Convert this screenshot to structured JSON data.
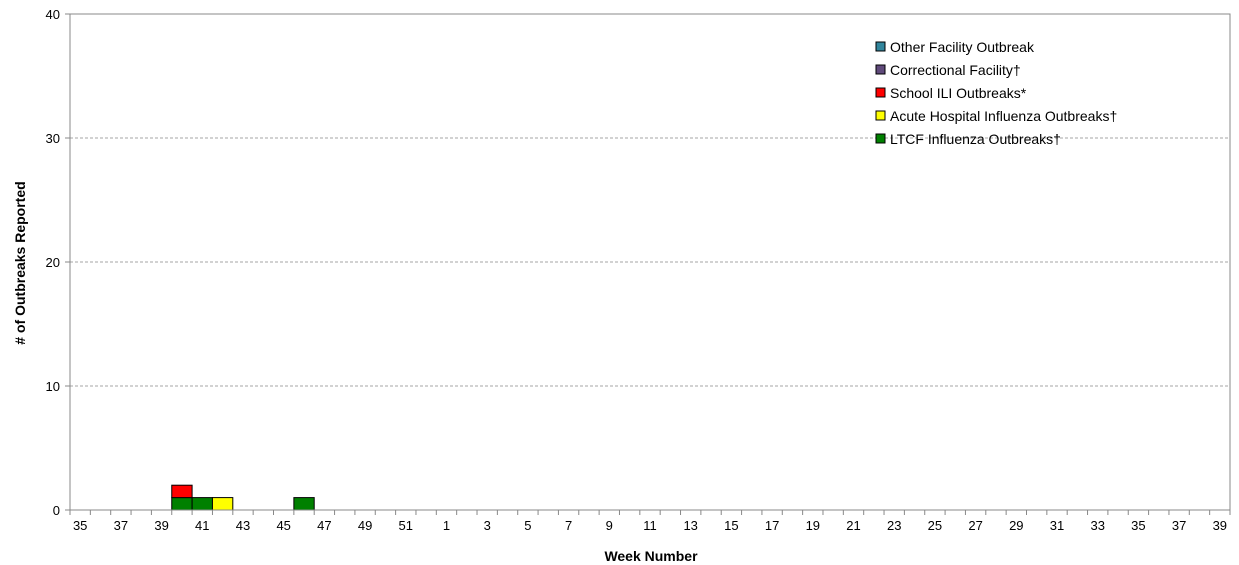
{
  "chart_data": {
    "type": "bar",
    "stacked": true,
    "xlabel": "Week Number",
    "ylabel": "# of Outbreaks Reported",
    "ylim": [
      0,
      40
    ],
    "y_ticks": [
      "0",
      "10",
      "20",
      "30",
      "40"
    ],
    "grid": "horizontal-dashed",
    "legend_position": "top-right",
    "categories": [
      "35",
      "36",
      "37",
      "38",
      "39",
      "40",
      "41",
      "42",
      "43",
      "44",
      "45",
      "46",
      "47",
      "48",
      "49",
      "50",
      "51",
      "52",
      "1",
      "2",
      "3",
      "4",
      "5",
      "6",
      "7",
      "8",
      "9",
      "10",
      "11",
      "12",
      "13",
      "14",
      "15",
      "16",
      "17",
      "18",
      "19",
      "20",
      "21",
      "22",
      "23",
      "24",
      "25",
      "26",
      "27",
      "28",
      "29",
      "30",
      "31",
      "32",
      "33",
      "34",
      "35",
      "36",
      "37",
      "38",
      "39"
    ],
    "tick_labels": [
      "35",
      "37",
      "39",
      "41",
      "43",
      "45",
      "47",
      "49",
      "51",
      "1",
      "3",
      "5",
      "7",
      "9",
      "11",
      "13",
      "15",
      "17",
      "19",
      "21",
      "23",
      "25",
      "27",
      "29",
      "31",
      "33",
      "35",
      "37",
      "39"
    ],
    "series": [
      {
        "name": "LTCF Influenza Outbreaks†",
        "color": "#008000",
        "values": [
          0,
          0,
          0,
          0,
          0,
          1,
          1,
          0,
          0,
          0,
          0,
          1,
          0,
          0,
          0,
          0,
          0,
          0,
          0,
          0,
          0,
          0,
          0,
          0,
          0,
          0,
          0,
          0,
          0,
          0,
          0,
          0,
          0,
          0,
          0,
          0,
          0,
          0,
          0,
          0,
          0,
          0,
          0,
          0,
          0,
          0,
          0,
          0,
          0,
          0,
          0,
          0,
          0,
          0,
          0,
          0,
          0
        ]
      },
      {
        "name": "Acute Hospital Influenza Outbreaks†",
        "color": "#ffff00",
        "values": [
          0,
          0,
          0,
          0,
          0,
          0,
          0,
          1,
          0,
          0,
          0,
          0,
          0,
          0,
          0,
          0,
          0,
          0,
          0,
          0,
          0,
          0,
          0,
          0,
          0,
          0,
          0,
          0,
          0,
          0,
          0,
          0,
          0,
          0,
          0,
          0,
          0,
          0,
          0,
          0,
          0,
          0,
          0,
          0,
          0,
          0,
          0,
          0,
          0,
          0,
          0,
          0,
          0,
          0,
          0,
          0,
          0
        ]
      },
      {
        "name": "School ILI Outbreaks*",
        "color": "#ff0000",
        "values": [
          0,
          0,
          0,
          0,
          0,
          1,
          0,
          0,
          0,
          0,
          0,
          0,
          0,
          0,
          0,
          0,
          0,
          0,
          0,
          0,
          0,
          0,
          0,
          0,
          0,
          0,
          0,
          0,
          0,
          0,
          0,
          0,
          0,
          0,
          0,
          0,
          0,
          0,
          0,
          0,
          0,
          0,
          0,
          0,
          0,
          0,
          0,
          0,
          0,
          0,
          0,
          0,
          0,
          0,
          0,
          0,
          0
        ]
      },
      {
        "name": "Correctional Facility†",
        "color": "#604a7b",
        "values": [
          0,
          0,
          0,
          0,
          0,
          0,
          0,
          0,
          0,
          0,
          0,
          0,
          0,
          0,
          0,
          0,
          0,
          0,
          0,
          0,
          0,
          0,
          0,
          0,
          0,
          0,
          0,
          0,
          0,
          0,
          0,
          0,
          0,
          0,
          0,
          0,
          0,
          0,
          0,
          0,
          0,
          0,
          0,
          0,
          0,
          0,
          0,
          0,
          0,
          0,
          0,
          0,
          0,
          0,
          0,
          0,
          0
        ]
      },
      {
        "name": "Other Facility Outbreak",
        "color": "#31859c",
        "values": [
          0,
          0,
          0,
          0,
          0,
          0,
          0,
          0,
          0,
          0,
          0,
          0,
          0,
          0,
          0,
          0,
          0,
          0,
          0,
          0,
          0,
          0,
          0,
          0,
          0,
          0,
          0,
          0,
          0,
          0,
          0,
          0,
          0,
          0,
          0,
          0,
          0,
          0,
          0,
          0,
          0,
          0,
          0,
          0,
          0,
          0,
          0,
          0,
          0,
          0,
          0,
          0,
          0,
          0,
          0,
          0,
          0
        ]
      }
    ],
    "legend_order": [
      "Other Facility Outbreak",
      "Correctional Facility†",
      "School ILI Outbreaks*",
      "Acute Hospital Influenza Outbreaks†",
      "LTCF Influenza Outbreaks†"
    ]
  }
}
